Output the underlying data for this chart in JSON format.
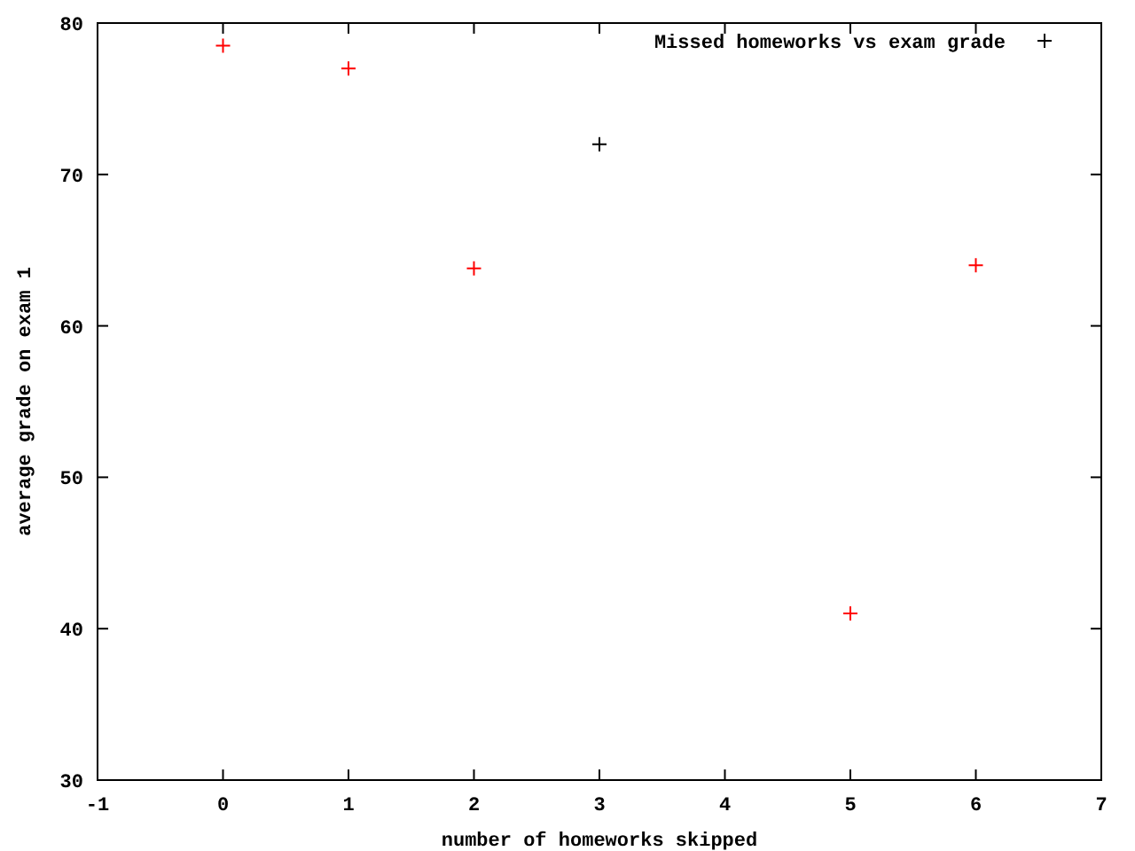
{
  "chart_data": {
    "type": "scatter",
    "xlabel": "number of homeworks skipped",
    "ylabel": "average grade on exam 1",
    "x": [
      0,
      1,
      2,
      3,
      5,
      6
    ],
    "series": [
      {
        "name": "Missed homeworks vs exam grade",
        "color": "#000000",
        "colors": [
          "#ff0000",
          "#ff0000",
          "#ff0000",
          "#000000",
          "#ff0000",
          "#ff0000"
        ],
        "values": [
          78.5,
          77,
          63.8,
          72,
          41,
          64
        ]
      }
    ],
    "xlim": [
      -1,
      7
    ],
    "xticks": [
      -1,
      0,
      1,
      2,
      3,
      4,
      5,
      6,
      7
    ],
    "ylim": [
      30,
      80
    ],
    "yticks": [
      30,
      40,
      50,
      60,
      70,
      80
    ],
    "marker": "cross",
    "legend": "top right",
    "grid": false
  }
}
